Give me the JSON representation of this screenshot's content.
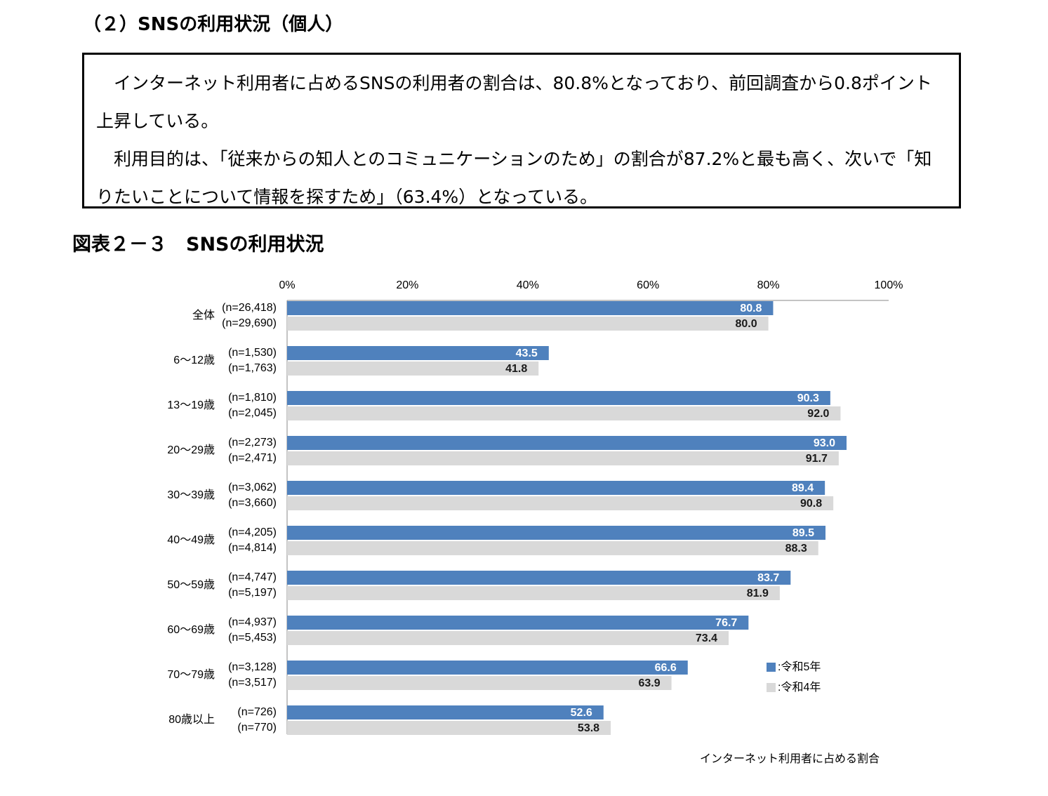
{
  "header": {
    "title": "（２）SNSの利用状況（個人）"
  },
  "summary": {
    "paragraphs": [
      "インターネット利用者に占めるSNSの利用者の割合は、80.8%となっており、前回調査から0.8ポイント上昇している。",
      "利用目的は、「従来からの知人とのコミュニケーションのため」の割合が87.2%と最も高く、次いで「知りたいことについて情報を探すため」（63.4%）となっている。"
    ]
  },
  "figure": {
    "caption": "図表２－３　SNSの利用状況"
  },
  "chart_data": {
    "type": "bar",
    "orientation": "horizontal",
    "categories": [
      "全体",
      "6～12歳",
      "13～19歳",
      "20～29歳",
      "30～39歳",
      "40～49歳",
      "50～59歳",
      "60～69歳",
      "70～79歳",
      "80歳以上"
    ],
    "series": [
      {
        "name": ":令和5年",
        "color": "#4f81bd",
        "label_color": "#ffffff",
        "values": [
          80.8,
          43.5,
          90.3,
          93.0,
          89.4,
          89.5,
          83.7,
          76.7,
          66.6,
          52.6
        ],
        "value_labels": [
          "80.8",
          "43.5",
          "90.3",
          "93.0",
          "89.4",
          "89.5",
          "83.7",
          "76.7",
          "66.6",
          "52.6"
        ],
        "n_labels": [
          "(n=26,418)",
          "(n=1,530)",
          "(n=1,810)",
          "(n=2,273)",
          "(n=3,062)",
          "(n=4,205)",
          "(n=4,747)",
          "(n=4,937)",
          "(n=3,128)",
          "(n=726)"
        ]
      },
      {
        "name": ":令和4年",
        "color": "#d9d9d9",
        "label_color": "#1a1a1a",
        "values": [
          80.0,
          41.8,
          92.0,
          91.7,
          90.8,
          88.3,
          81.9,
          73.4,
          63.9,
          53.8
        ],
        "value_labels": [
          "80.0",
          "41.8",
          "92.0",
          "91.7",
          "90.8",
          "88.3",
          "81.9",
          "73.4",
          "63.9",
          "53.8"
        ],
        "n_labels": [
          "(n=29,690)",
          "(n=1,763)",
          "(n=2,045)",
          "(n=2,471)",
          "(n=3,660)",
          "(n=4,814)",
          "(n=5,197)",
          "(n=5,453)",
          "(n=3,517)",
          "(n=770)"
        ]
      }
    ],
    "xlim": [
      0,
      100
    ],
    "xticks": [
      {
        "value": 0,
        "label": "0%"
      },
      {
        "value": 20,
        "label": "20%"
      },
      {
        "value": 40,
        "label": "40%"
      },
      {
        "value": 60,
        "label": "60%"
      },
      {
        "value": 80,
        "label": "80%"
      },
      {
        "value": 100,
        "label": "100%"
      }
    ],
    "x_label": "インターネット利用者に占める割合"
  }
}
